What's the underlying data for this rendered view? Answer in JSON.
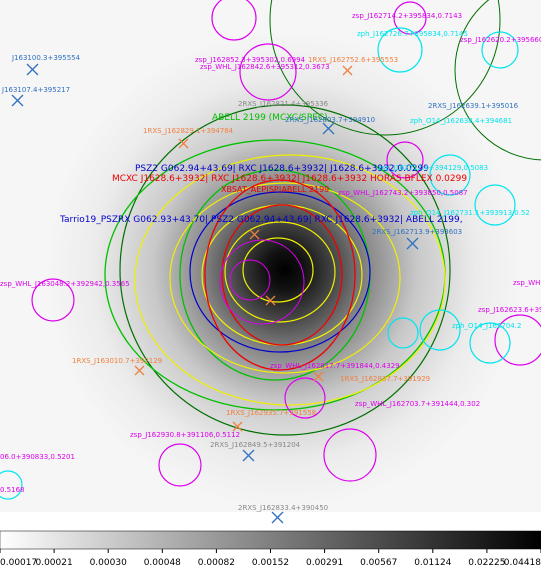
{
  "colors": {
    "cyan": "#00e5ee",
    "magenta": "#dd00ee",
    "orange": "#f08040",
    "yellow": "#f0f000",
    "green": "#00c000",
    "dark_green": "#007000",
    "blue": "#0000cc",
    "red": "#ee0000",
    "steel_blue": "#3070c0",
    "gray_label": "#888888"
  },
  "labels": {
    "wide_top_1": "zsp_J162714.2+395834,0.7143",
    "wide_top_2": "zph_J162726.7+395834,0.7145",
    "wide_top_3": "zsp_J162620.2+395660",
    "rxs_1": "J163100.3+395554",
    "rxs_2": "J163107.4+395217",
    "whl_top": "zsp_J162852.3+395302,0.6994",
    "whl_top_b": "zsp_WHL_J162842.6+395312,0.3673",
    "rxs_top": "1RXS_J162752.6+395553",
    "rxs_top_b": "2RXS_J162821.4+395336",
    "rxs_right": "2RXS_J162639.1+395016",
    "zph_right": "zph_O14_J162638.4+394681",
    "abell": "ABELL 2199 (MCXC/SPEC)",
    "rxs_center_top": "2RXS_J162803.7+394910",
    "rxs_left_mid": "1RXS_J162829.1+394784",
    "psz2": "PSZ2 G062.94+43.69| RXC J1628.6+3932| J1628.6+3932,0.0299",
    "mcxc": "MCXC J1628.6+3932| RXC J1628.6+3932| J1628.6+3932 HORAS BFLEX 0.0299",
    "xbsat": "XBSAT_AEP|SP|ABELL 2199",
    "tarrio": "Tarrio19_PSZRX G062.93+43.70| PSZ2 G062.94+43.69| RXC J1628.6+3932| ABELL 2199,",
    "whl_mid_right": "zsp_WHL_J162743.2+393850,0.5087",
    "zph_mid_right": "zsp_J162712.4+394129,0.5083",
    "zph_c": "zph_O14_J162731.1+393913,0.52",
    "rxs_right_mid": "2RXS_J162713.9+393603",
    "whl_left": "zsp_WHL_J163048.2+392942,0.3565",
    "zsp_right_edge": "zsp_WHL",
    "zsp_right_mid": "zsp_J162623.6+392518",
    "zph_right_mid": "zph_O14_J162704.2",
    "rxs_left_low": "1RXS_J163010.7+392129",
    "rxs_center_low": "1RXS_J162837.7+391929",
    "whl_bottom_center": "zsp_WHL_J162817.7+391844,0.4329",
    "whl_bottom_right": "zsp_WHL_J162703.7+391444,0.302",
    "rxs_lower_1": "1RXS_J162935.7+391558",
    "zsp_lower_left": "zsp_J162930.8+391106,0.5112",
    "rxs_lower_2": "2RXS_J162849.5+391204",
    "zsp_left_low_1": "06.0+390833,0.5201",
    "zsp_left_low_2": "0.5168",
    "rxs_bottom": "2RXS_J162833.4+390450",
    "rxs_center_2": "2RXS_J162837.7+393420",
    "zsp_center_a": "zsp_O14_J162813.0+393455",
    "zph_left_low": "zph_J162930.8+392942,0.5106",
    "rxs_center_3": "1RXS_J162844.0+393331"
  },
  "colorbar": {
    "ticks": [
      "0.00017",
      "0.00021",
      "0.00030",
      "0.00048",
      "0.00082",
      "0.00152",
      "0.00291",
      "0.00567",
      "0.01124",
      "0.02225",
      "0.04418"
    ]
  }
}
